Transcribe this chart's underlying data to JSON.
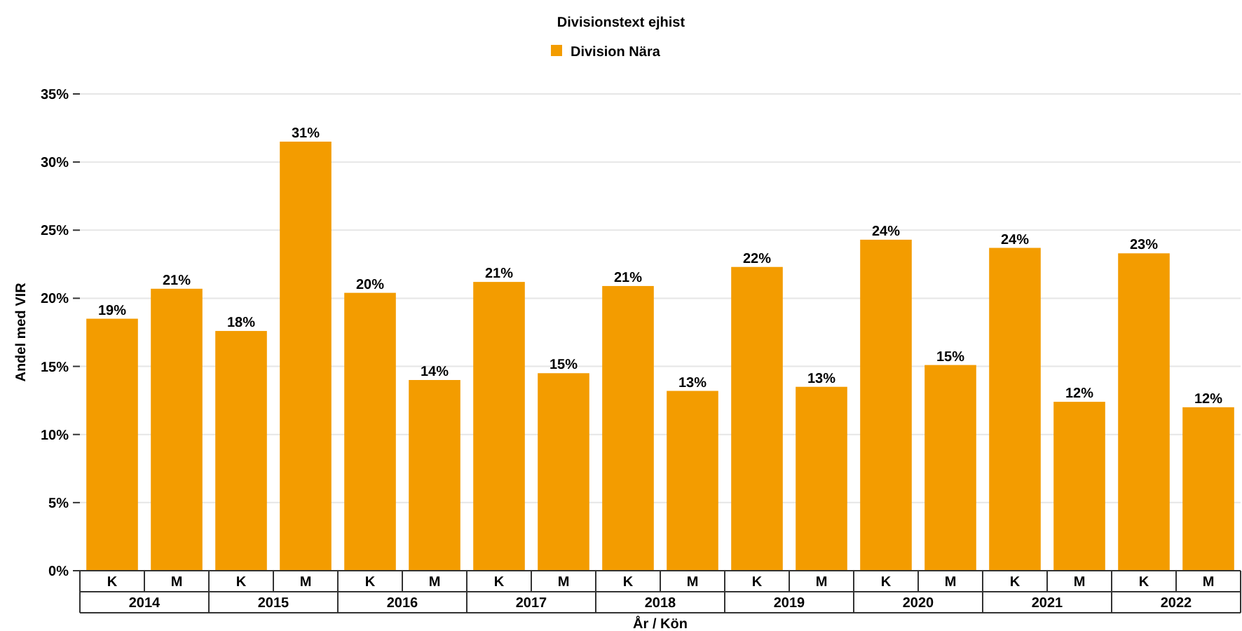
{
  "chart_data": {
    "type": "bar",
    "title": "Divisionstext ejhist",
    "xlabel": "År / Kön",
    "ylabel": "Andel med VIR",
    "categories": [
      "K",
      "M",
      "K",
      "M",
      "K",
      "M",
      "K",
      "M",
      "K",
      "M",
      "K",
      "M",
      "K",
      "M",
      "K",
      "M",
      "K",
      "M"
    ],
    "annotations": [
      "2014",
      "2015",
      "2016",
      "2017",
      "2018",
      "2019",
      "2020",
      "2021",
      "2022"
    ],
    "series": [
      {
        "name": "Division Nära",
        "color": "#f39c00",
        "values": [
          18.5,
          20.7,
          17.6,
          31.5,
          20.4,
          14.0,
          21.2,
          14.5,
          20.9,
          13.2,
          22.3,
          13.5,
          24.3,
          15.1,
          23.7,
          12.4,
          23.3,
          12.0
        ],
        "value_labels": [
          "19%",
          "21%",
          "18%",
          "31%",
          "20%",
          "14%",
          "21%",
          "15%",
          "21%",
          "13%",
          "22%",
          "13%",
          "24%",
          "15%",
          "24%",
          "12%",
          "23%",
          "12%"
        ]
      }
    ],
    "ylim": [
      0,
      35
    ],
    "yticks": [
      {
        "value": 0,
        "label": "0%"
      },
      {
        "value": 5,
        "label": "5%"
      },
      {
        "value": 10,
        "label": "10%"
      },
      {
        "value": 15,
        "label": "15%"
      },
      {
        "value": 20,
        "label": "20%"
      },
      {
        "value": 25,
        "label": "25%"
      },
      {
        "value": 30,
        "label": "30%"
      },
      {
        "value": 35,
        "label": "35%"
      }
    ],
    "grid": "y",
    "legend": "top"
  }
}
